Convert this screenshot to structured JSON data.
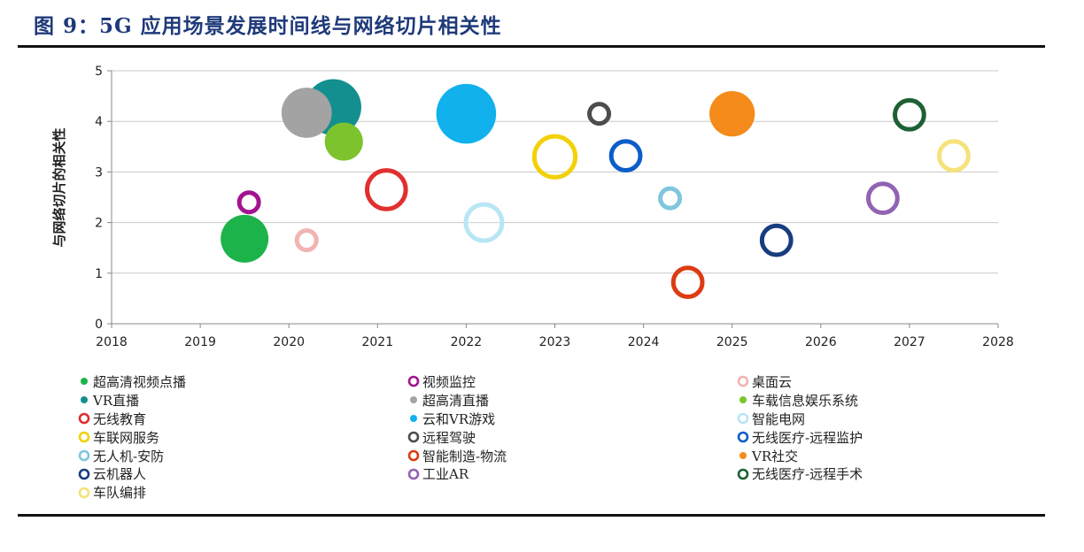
{
  "title": "图 9：5G 应用场景发展时间线与网络切片相关性",
  "chart_data": {
    "type": "scatter",
    "ylabel": "与网络切片的相关性",
    "xlabel": "",
    "xlim": [
      2018,
      2028
    ],
    "ylim": [
      0,
      5
    ],
    "xticks": [
      2018,
      2019,
      2020,
      2021,
      2022,
      2023,
      2024,
      2025,
      2026,
      2027,
      2028
    ],
    "yticks": [
      0,
      1,
      2,
      3,
      4,
      5
    ],
    "grid": "horizontal",
    "legend_position": "bottom",
    "series": [
      {
        "name": "超高清视频点播",
        "x": 2019.5,
        "y": 1.68,
        "size": 2.0,
        "color": "#1db34b",
        "style": "filled"
      },
      {
        "name": "视频监控",
        "x": 2019.55,
        "y": 2.4,
        "size": 1.0,
        "color": "#a2148f",
        "style": "ring"
      },
      {
        "name": "桌面云",
        "x": 2020.2,
        "y": 1.65,
        "size": 1.0,
        "color": "#f2b3b3",
        "style": "ring"
      },
      {
        "name": "VR直播",
        "x": 2020.5,
        "y": 4.28,
        "size": 2.35,
        "color": "#138f8f",
        "style": "filled"
      },
      {
        "name": "超高清直播",
        "x": 2020.2,
        "y": 4.17,
        "size": 2.1,
        "color": "#a3a3a3",
        "style": "filled"
      },
      {
        "name": "车载信息娱乐系统",
        "x": 2020.62,
        "y": 3.6,
        "size": 1.6,
        "color": "#7cc32e",
        "style": "filled"
      },
      {
        "name": "无线教育",
        "x": 2021.1,
        "y": 2.65,
        "size": 1.8,
        "color": "#e12f2f",
        "style": "ring"
      },
      {
        "name": "云和VR游戏",
        "x": 2022.0,
        "y": 4.15,
        "size": 2.5,
        "color": "#10b1ec",
        "style": "filled"
      },
      {
        "name": "智能电网",
        "x": 2022.2,
        "y": 2.0,
        "size": 1.7,
        "color": "#b8e6f5",
        "style": "ring"
      },
      {
        "name": "车联网服务",
        "x": 2023.0,
        "y": 3.3,
        "size": 1.9,
        "color": "#f2d10a",
        "style": "ring"
      },
      {
        "name": "远程驾驶",
        "x": 2023.5,
        "y": 4.15,
        "size": 1.0,
        "color": "#4d4d4d",
        "style": "ring"
      },
      {
        "name": "无线医疗-远程监护",
        "x": 2023.8,
        "y": 3.32,
        "size": 1.4,
        "color": "#0b5ec9",
        "style": "ring"
      },
      {
        "name": "无人机-安防",
        "x": 2024.3,
        "y": 2.48,
        "size": 1.0,
        "color": "#7fc6de",
        "style": "ring"
      },
      {
        "name": "智能制造-物流",
        "x": 2024.5,
        "y": 0.82,
        "size": 1.4,
        "color": "#dd3b12",
        "style": "ring"
      },
      {
        "name": "VR社交",
        "x": 2025.0,
        "y": 4.15,
        "size": 1.9,
        "color": "#f48b1a",
        "style": "filled"
      },
      {
        "name": "云机器人",
        "x": 2025.5,
        "y": 1.65,
        "size": 1.4,
        "color": "#173d80",
        "style": "ring"
      },
      {
        "name": "工业AR",
        "x": 2026.7,
        "y": 2.48,
        "size": 1.4,
        "color": "#9163b2",
        "style": "ring"
      },
      {
        "name": "无线医疗-远程手术",
        "x": 2027.0,
        "y": 4.13,
        "size": 1.4,
        "color": "#1e6034",
        "style": "ring"
      },
      {
        "name": "车队编排",
        "x": 2027.5,
        "y": 3.32,
        "size": 1.4,
        "color": "#f5e27a",
        "style": "ring"
      }
    ]
  },
  "legend_order": [
    "超高清视频点播",
    "视频监控",
    "桌面云",
    "VR直播",
    "超高清直播",
    "车载信息娱乐系统",
    "无线教育",
    "云和VR游戏",
    "智能电网",
    "车联网服务",
    "远程驾驶",
    "无线医疗-远程监护",
    "无人机-安防",
    "智能制造-物流",
    "VR社交",
    "云机器人",
    "工业AR",
    "无线医疗-远程手术",
    "车队编排"
  ]
}
